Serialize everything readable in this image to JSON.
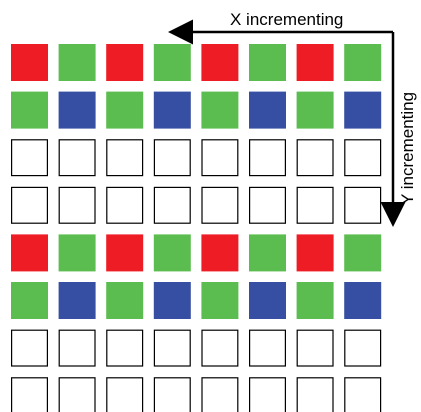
{
  "labels": {
    "x_axis": "X incrementing",
    "y_axis": "Y incrementing"
  },
  "colors": {
    "R": "#ee1c25",
    "G": "#5bbd4f",
    "B": "#374fa2",
    "E": "#ffffff",
    "outline": "#000000",
    "arrow": "#000000"
  },
  "grid": {
    "cols": 8,
    "rows": [
      [
        "R",
        "G",
        "R",
        "G",
        "R",
        "G",
        "R",
        "G"
      ],
      [
        "G",
        "B",
        "G",
        "B",
        "G",
        "B",
        "G",
        "B"
      ],
      [
        "E",
        "E",
        "E",
        "E",
        "E",
        "E",
        "E",
        "E"
      ],
      [
        "E",
        "E",
        "E",
        "E",
        "E",
        "E",
        "E",
        "E"
      ],
      [
        "R",
        "G",
        "R",
        "G",
        "R",
        "G",
        "R",
        "G"
      ],
      [
        "G",
        "B",
        "G",
        "B",
        "G",
        "B",
        "G",
        "B"
      ],
      [
        "E",
        "E",
        "E",
        "E",
        "E",
        "E",
        "E",
        "E"
      ],
      [
        "E",
        "E",
        "E",
        "E",
        "E",
        "E",
        "E",
        "E"
      ]
    ]
  }
}
